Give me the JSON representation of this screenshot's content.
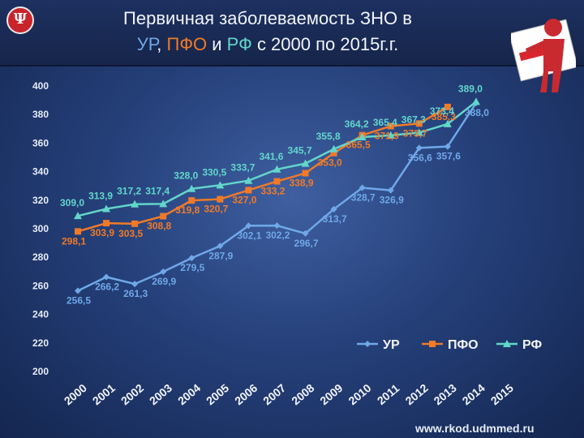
{
  "header": {
    "logo_glyph": "Ψ",
    "title_line1": "Первичная заболеваемость ЗНО в",
    "title_l2_ur": "УР",
    "title_l2_sep1": ", ",
    "title_l2_pfo": "ПФО",
    "title_l2_mid": " и ",
    "title_l2_rf": "РФ",
    "title_l2_rest": " с 2000 по 2015г.г."
  },
  "footer": {
    "site": "www.rkod.udmmed.ru"
  },
  "decor": {
    "figure_icon": "person-holding-sign-icon"
  },
  "chart_data": {
    "type": "line",
    "x": [
      "2000",
      "2001",
      "2002",
      "2003",
      "2004",
      "2005",
      "2006",
      "2007",
      "2008",
      "2009",
      "2010",
      "2011",
      "2012",
      "2013",
      "2014",
      "2015"
    ],
    "ylim": [
      200,
      400
    ],
    "yticks": [
      "200",
      "220",
      "240",
      "260",
      "280",
      "300",
      "320",
      "340",
      "360",
      "380",
      "400"
    ],
    "legend_position": "bottom-right",
    "series": [
      {
        "name": "УР",
        "color": "#6fa8e8",
        "marker": "diamond",
        "values": [
          256.5,
          266.2,
          261.3,
          269.9,
          279.5,
          287.9,
          302.1,
          302.2,
          296.7,
          313.7,
          328.7,
          326.9,
          356.6,
          357.6,
          388.0,
          null
        ],
        "labels": [
          "256,5",
          "266,2",
          "261,3",
          "269,9",
          "279,5",
          "287,9",
          "302,1",
          "302,2",
          "296,7",
          "313,7",
          "328,7",
          "326,9",
          "356,6",
          "357,6",
          "388,0",
          ""
        ]
      },
      {
        "name": "ПФО",
        "color": "#f07a28",
        "marker": "square",
        "values": [
          298.1,
          303.9,
          303.5,
          308.8,
          319.8,
          320.7,
          327.0,
          333.2,
          338.9,
          353.0,
          365.5,
          371.9,
          373.7,
          385.3,
          null,
          null
        ],
        "labels": [
          "298,1",
          "303,9",
          "303,5",
          "308,8",
          "319,8",
          "320,7",
          "327,0",
          "333,2",
          "338,9",
          "353,0",
          "365,5",
          "371,9",
          "373,7",
          "385,3",
          "",
          ""
        ]
      },
      {
        "name": "РФ",
        "color": "#62d6ca",
        "marker": "triangle",
        "values": [
          309.0,
          313.9,
          317.2,
          317.4,
          328.0,
          330.5,
          333.7,
          341.6,
          345.7,
          355.8,
          364.2,
          365.4,
          367.3,
          373.4,
          389.0,
          null
        ],
        "labels": [
          "309,0",
          "313,9",
          "317,2",
          "317,4",
          "328,0",
          "330,5",
          "333,7",
          "341,6",
          "345,7",
          "355,8",
          "364,2",
          "365,4",
          "367,3",
          "373,4",
          "389,0",
          ""
        ]
      }
    ]
  }
}
